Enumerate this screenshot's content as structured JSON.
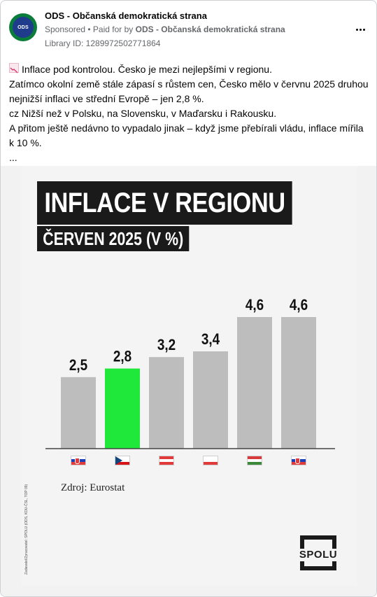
{
  "post": {
    "avatar_text": "ODS",
    "page_name": "ODS - Občanská demokratická strana",
    "sponsored": "Sponsored",
    "separator": " • ",
    "paid_for_prefix": "Paid for by ",
    "paid_for_name": "ODS - Občanská demokratická strana",
    "library_id": "Library ID: 1289972502771864",
    "more_icon": "more-dots-icon",
    "text_icon": "chart-decreasing-icon",
    "text_lines": [
      "Inflace pod kontrolou. Česko je mezi nejlepšími v regionu.",
      "Zatímco okolní země stále zápasí s růstem cen, Česko mělo v červnu 2025 druhou nejnižší inflaci ve střední Evropě – jen 2,8 %.",
      "cz Nižší než v Polsku, na Slovensku, v Maďarsku i Rakousku.",
      "A přitom ještě nedávno to vypadalo jinak – když jsme přebírali vládu, inflace mířila k 10 %.",
      "..."
    ]
  },
  "ad": {
    "title": "INFLACE V REGIONU",
    "subtitle": "ČERVEN 2025 (V %)",
    "source": "Zdroj: Eurostat",
    "side_credit": "Zadavatel/Zpracovatel: SPOLU (ODS, KDU-ČSL, TOP 09)",
    "logo_text": "SPOLU"
  },
  "chart_data": {
    "type": "bar",
    "categories": [
      "Slovinsko",
      "Česko",
      "Rakousko",
      "Polsko",
      "Maďarsko",
      "Slovensko"
    ],
    "values": [
      2.5,
      2.8,
      3.2,
      3.4,
      4.6,
      4.6
    ],
    "labels": [
      "2,5",
      "2,8",
      "3,2",
      "3,4",
      "4,6",
      "4,6"
    ],
    "highlight_index": 1,
    "colors": {
      "bar": "#bdbdbd",
      "highlight": "#1fe83a",
      "baseline": "#444444"
    },
    "ylim": [
      0,
      4.6
    ],
    "grid": false,
    "title": "INFLACE V REGIONU",
    "subtitle": "ČERVEN 2025 (V %)"
  },
  "flags": [
    {
      "name": "flag-slovenia-icon",
      "stripes": [
        "#ffffff",
        "#1a3fb8",
        "#e03a3a"
      ],
      "emblem": true
    },
    {
      "name": "flag-czechia-icon",
      "stripes": [
        "#ffffff",
        "#ffffff",
        "#d7141a"
      ],
      "triangle": true
    },
    {
      "name": "flag-austria-icon",
      "stripes": [
        "#e03a3a",
        "#ffffff",
        "#e03a3a"
      ]
    },
    {
      "name": "flag-poland-icon",
      "stripes": [
        "#ffffff",
        "#ffffff",
        "#e03a3a"
      ]
    },
    {
      "name": "flag-hungary-icon",
      "stripes": [
        "#d73a3a",
        "#ffffff",
        "#3a8a3a"
      ]
    },
    {
      "name": "flag-slovakia-icon",
      "stripes": [
        "#ffffff",
        "#1a3fb8",
        "#e03a3a"
      ],
      "emblem": true
    }
  ]
}
